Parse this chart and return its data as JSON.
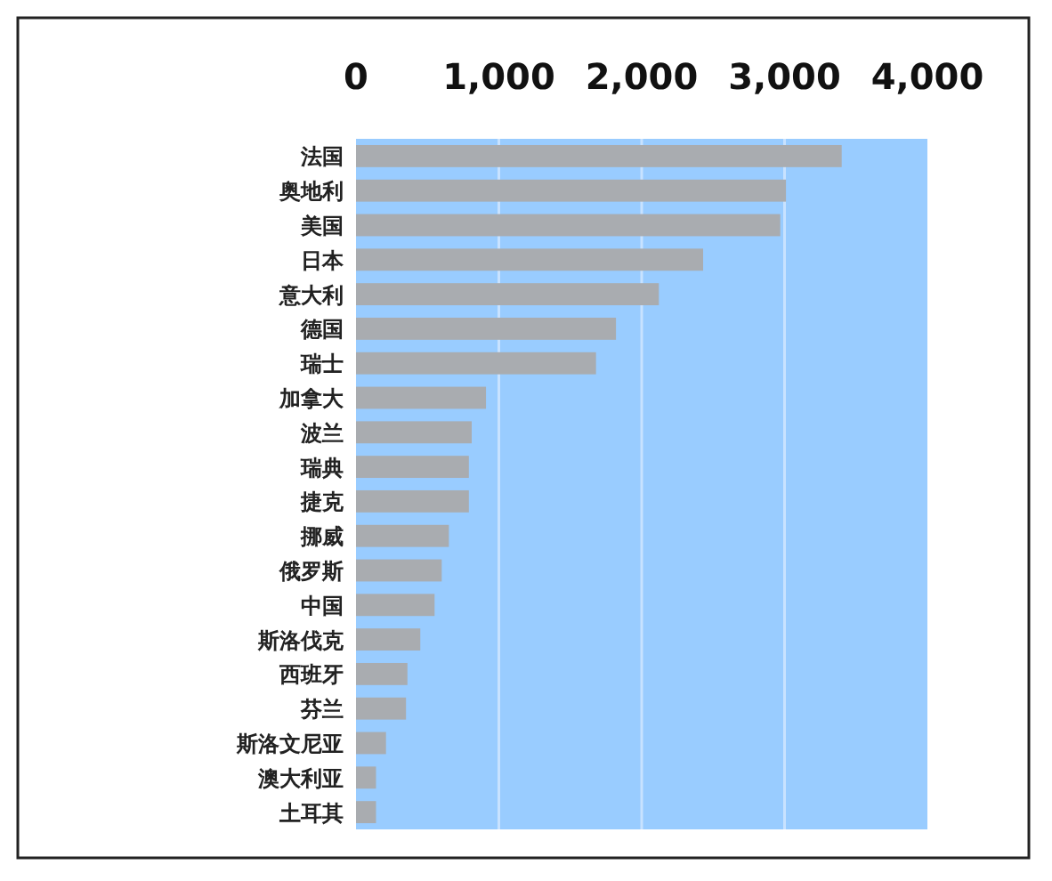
{
  "chart_data": {
    "type": "bar",
    "orientation": "horizontal",
    "categories": [
      "法国",
      "奥地利",
      "美国",
      "日本",
      "意大利",
      "德国",
      "瑞士",
      "加拿大",
      "波兰",
      "瑞典",
      "捷克",
      "挪威",
      "俄罗斯",
      "中国",
      "斯洛伐克",
      "西班牙",
      "芬兰",
      "斯洛文尼亚",
      "澳大利亚",
      "土耳其"
    ],
    "values": [
      3400,
      3010,
      2970,
      2430,
      2120,
      1820,
      1680,
      910,
      810,
      790,
      790,
      650,
      600,
      550,
      450,
      360,
      350,
      210,
      140,
      140
    ],
    "color": "#a9acb0",
    "xlim": [
      0,
      4000
    ],
    "xticks": [
      {
        "value": 0,
        "label": "0"
      },
      {
        "value": 1000,
        "label": "1,000"
      },
      {
        "value": 2000,
        "label": "2,000"
      },
      {
        "value": 3000,
        "label": "3,000"
      },
      {
        "value": 4000,
        "label": "4,000"
      }
    ],
    "grid": "x"
  }
}
